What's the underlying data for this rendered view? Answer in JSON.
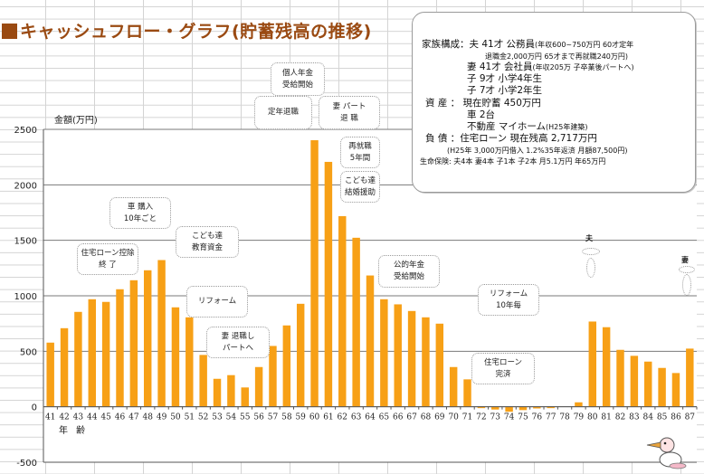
{
  "title": "キャッシュフロー・グラフ(貯蓄残高の推移)",
  "info_box": {
    "family_label": "家族構成：",
    "husband": "夫 41才 公務員",
    "husband_note": "(年収600~750万円 60才定年",
    "husband_note2": "退職金2,000万円  65才まで再就職240万円)",
    "wife": "妻 41才 会社員",
    "wife_note": "(年収205万  子卒業後パートへ)",
    "child1": "子 9才 小学4年生",
    "child2": "子 7才 小学2年生",
    "assets_label": "資  産 ：",
    "savings": "現在貯蓄     450万円",
    "car": "車                 2台",
    "realestate": "不動産        マイホーム",
    "realestate_note": "(H25年建築)",
    "debt_label": "負  債 ：",
    "loan": "住宅ローン  現在残高  2,717万円",
    "loan_note": "(H25年  3,000万円借入  1.2%35年返済  月額87,500円)",
    "insurance": "生命保険:  夫4本 妻4本 子1本 子2本  月5.1万円  年65万円"
  },
  "callouts": {
    "pension_private": [
      "個人年金",
      "受給開始"
    ],
    "retire": [
      "定年退職"
    ],
    "wife_part_retire": [
      "妻  パート",
      "退  職"
    ],
    "reemploy": [
      "再就職",
      "5年間"
    ],
    "child_marriage": [
      "こども達",
      "結婚援助"
    ],
    "car": [
      "車  購入",
      "10年ごと"
    ],
    "loan_deduction": [
      "住宅ローン控除",
      "終  了"
    ],
    "education": [
      "こども達",
      "教育資金"
    ],
    "reform": [
      "リフォーム"
    ],
    "wife_quit": [
      "妻  退職し",
      "パートへ"
    ],
    "public_pension": [
      "公的年金",
      "受給開始"
    ],
    "reform10": [
      "リフォーム",
      "10年毎"
    ],
    "loan_done": [
      "住宅ローン",
      "完済"
    ],
    "husband_mark": "夫",
    "wife_mark": "妻"
  },
  "colors": {
    "bar": "#f7a016",
    "title": "#9a4a12",
    "grid": "#7a7a7a"
  },
  "chart_data": {
    "type": "bar",
    "title": "キャッシュフロー・グラフ(貯蓄残高の推移)",
    "ylabel": "金額(万円)",
    "xlabel": "年 齢",
    "ylim": [
      -500,
      2500
    ],
    "yticks": [
      2500,
      2000,
      1500,
      1000,
      500,
      0,
      -500
    ],
    "grid": true,
    "categories": [
      "41",
      "42",
      "43",
      "44",
      "45",
      "46",
      "47",
      "48",
      "49",
      "50",
      "51",
      "52",
      "53",
      "54",
      "55",
      "56",
      "57",
      "58",
      "59",
      "60",
      "61",
      "62",
      "63",
      "64",
      "65",
      "66",
      "67",
      "68",
      "69",
      "70",
      "71",
      "72",
      "73",
      "74",
      "75",
      "76",
      "77",
      "78",
      "79",
      "80",
      "81",
      "82",
      "83",
      "84",
      "85",
      "86",
      "87"
    ],
    "values": [
      578,
      708,
      855,
      969,
      945,
      1059,
      1140,
      1230,
      1322,
      896,
      806,
      467,
      252,
      285,
      174,
      358,
      548,
      733,
      928,
      2402,
      2207,
      1718,
      1523,
      1183,
      969,
      923,
      863,
      806,
      749,
      358,
      247,
      -10,
      -25,
      -45,
      -30,
      -15,
      -10,
      0,
      40,
      768,
      717,
      513,
      459,
      407,
      350,
      304,
      524
    ]
  }
}
